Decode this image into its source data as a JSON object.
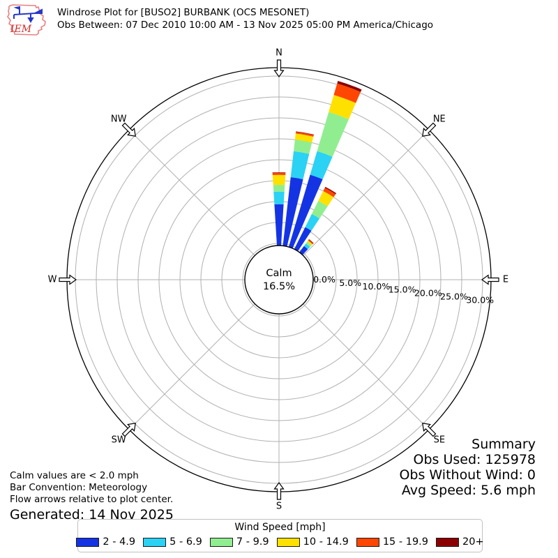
{
  "header": {
    "title": "Windrose Plot for [BUSO2] BURBANK (OCS MESONET)",
    "subtitle": "Obs Between: 07 Dec 2010 10:00 AM - 13 Nov 2025 05:00 PM America/Chicago",
    "logo_text": "IEM"
  },
  "chart_data": {
    "type": "windrose",
    "value_unit": "% frequency",
    "direction_bin_size_deg": 10,
    "direction_bins_deg": [
      0,
      10,
      20,
      30,
      40
    ],
    "series": [
      {
        "name": "2 - 4.9",
        "color": "#1434e4",
        "values": [
          7.5,
          12.8,
          14.0,
          4.3,
          1.1
        ]
      },
      {
        "name": "5 - 6.9",
        "color": "#2bd2f4",
        "values": [
          2.4,
          5.0,
          4.7,
          2.8,
          0.6
        ]
      },
      {
        "name": "7 - 9.9",
        "color": "#90ee90",
        "values": [
          1.3,
          2.2,
          7.8,
          2.8,
          0.4
        ]
      },
      {
        "name": "10 - 14.9",
        "color": "#ffe100",
        "values": [
          1.9,
          1.2,
          3.4,
          2.1,
          0.3
        ]
      },
      {
        "name": "15 - 19.9",
        "color": "#ff4602",
        "values": [
          0.4,
          0.3,
          2.3,
          0.7,
          0.2
        ]
      },
      {
        "name": "20+",
        "color": "#8b0000",
        "values": [
          0.1,
          0.1,
          0.5,
          0.2,
          0.1
        ]
      }
    ],
    "calm": {
      "label": "Calm",
      "value": "16.5%"
    },
    "radial_ticks_percent": [
      0,
      5,
      10,
      15,
      20,
      25,
      30
    ],
    "radial_tick_labels": [
      "0.0%",
      "5.0%",
      "10.0%",
      "15.0%",
      "20.0%",
      "25.0%",
      "30.0%"
    ],
    "compass": [
      {
        "label": "N",
        "deg": 0
      },
      {
        "label": "NE",
        "deg": 45
      },
      {
        "label": "E",
        "deg": 90
      },
      {
        "label": "SE",
        "deg": 135
      },
      {
        "label": "S",
        "deg": 180
      },
      {
        "label": "SW",
        "deg": 225
      },
      {
        "label": "W",
        "deg": 270
      },
      {
        "label": "NW",
        "deg": 315
      }
    ]
  },
  "legend": {
    "title": "Wind Speed [mph]",
    "items": [
      {
        "label": "2 - 4.9",
        "color": "#1434e4"
      },
      {
        "label": "5 - 6.9",
        "color": "#2bd2f4"
      },
      {
        "label": "7 - 9.9",
        "color": "#90ee90"
      },
      {
        "label": "10 - 14.9",
        "color": "#ffe100"
      },
      {
        "label": "15 - 19.9",
        "color": "#ff4602"
      },
      {
        "label": "20+",
        "color": "#8b0000"
      }
    ]
  },
  "summary": {
    "title": "Summary",
    "obs_used": "Obs Used: 125978",
    "obs_without_wind": "Obs Without Wind: 0",
    "avg_speed": "Avg Speed: 5.6 mph"
  },
  "notes": {
    "calm": "Calm values are < 2.0 mph",
    "convention": "Bar Convention: Meteorology",
    "arrows": "Flow arrows relative to plot center.",
    "generated": "Generated: 14 Nov 2025"
  },
  "colors": {
    "grid": "#b0b0b0",
    "axis": "#000000",
    "logo_red": "#cc2a2a",
    "logo_blue": "#2438c8"
  }
}
